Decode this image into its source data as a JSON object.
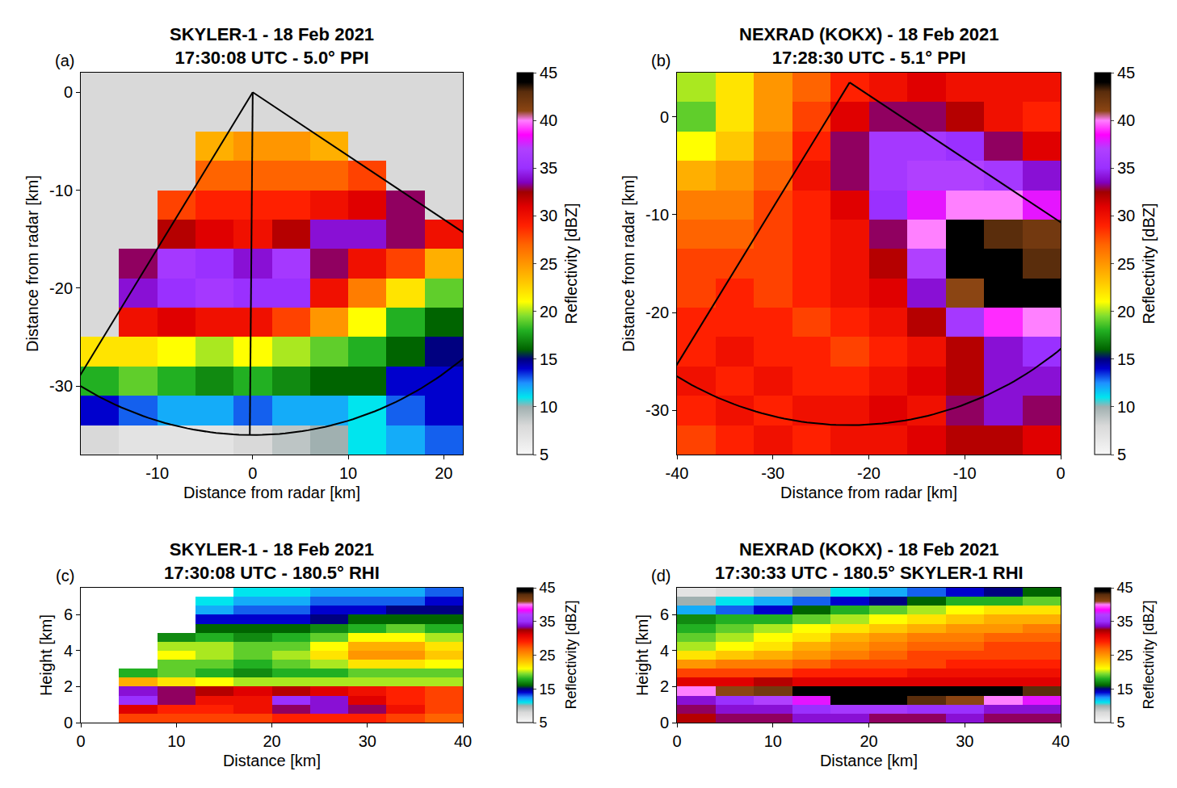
{
  "chart_data": [
    {
      "type": "heatmap",
      "panel": "(a)",
      "title": [
        "SKYLER-1 - 18 Feb 2021",
        "17:30:08 UTC - 5.0° PPI"
      ],
      "x_label": "Distance from radar [km]",
      "y_label": "Distance from radar [km]",
      "colorbar_label": "Reflectivity [dBZ]",
      "xlim": [
        -18,
        22
      ],
      "ylim": [
        -37,
        2
      ],
      "xticks": [
        -10,
        0,
        10,
        20
      ],
      "yticks": [
        -30,
        -20,
        -10,
        0
      ],
      "zlim": [
        5,
        45
      ],
      "zticks": [
        5,
        10,
        15,
        20,
        25,
        30,
        35,
        40,
        45
      ],
      "grid": false,
      "sector": {
        "apex": [
          0,
          0
        ],
        "azimuths": [
          212,
          123
        ],
        "radius": 35,
        "rhi_azimuth": 180.5
      },
      "x": [
        -16,
        -12,
        -8,
        -4,
        0,
        4,
        8,
        12,
        16,
        20
      ],
      "y": [
        0.5,
        -2.5,
        -5.5,
        -8.5,
        -11.5,
        -14.5,
        -17.5,
        -20.5,
        -23.5,
        -26.5,
        -29.5,
        -32.5,
        -35.5
      ],
      "z": [
        [
          null,
          null,
          null,
          null,
          null,
          null,
          null,
          null,
          null,
          null
        ],
        [
          null,
          null,
          null,
          null,
          null,
          null,
          null,
          null,
          null,
          null
        ],
        [
          null,
          null,
          null,
          24,
          25,
          25,
          24,
          null,
          null,
          null
        ],
        [
          null,
          null,
          null,
          27,
          27,
          27,
          27,
          28,
          null,
          null
        ],
        [
          null,
          null,
          28,
          29,
          29,
          29,
          30,
          31,
          33,
          null
        ],
        [
          null,
          null,
          32,
          31,
          30,
          32,
          34,
          34,
          33,
          30
        ],
        [
          null,
          33,
          36,
          35,
          34,
          36,
          33,
          30,
          28,
          24
        ],
        [
          null,
          34,
          35,
          36,
          35,
          35,
          30,
          26,
          22,
          19
        ],
        [
          null,
          30,
          31,
          30,
          30,
          28,
          25,
          21,
          18,
          16
        ],
        [
          22,
          22,
          21,
          20,
          21,
          20,
          19,
          18,
          16,
          15
        ],
        [
          18,
          19,
          18,
          17,
          18,
          17,
          16,
          16,
          14,
          14
        ],
        [
          14,
          13,
          12,
          12,
          13,
          12,
          12,
          11,
          13,
          14
        ],
        [
          8,
          7,
          7,
          7,
          8,
          9,
          10,
          11,
          12,
          13
        ]
      ]
    },
    {
      "type": "heatmap",
      "panel": "(b)",
      "title": [
        "NEXRAD (KOKX) - 18 Feb 2021",
        "17:28:30 UTC - 5.1° PPI"
      ],
      "x_label": "Distance from radar [km]",
      "y_label": "Distance from radar [km]",
      "colorbar_label": "Reflectivity [dBZ]",
      "xlim": [
        -40,
        0
      ],
      "ylim": [
        -34.5,
        4.5
      ],
      "xticks": [
        -40,
        -30,
        -20,
        -10,
        0
      ],
      "yticks": [
        -30,
        -20,
        -10,
        0
      ],
      "zlim": [
        5,
        45
      ],
      "zticks": [
        5,
        10,
        15,
        20,
        25,
        30,
        35,
        40,
        45
      ],
      "grid": false,
      "sector": {
        "apex": [
          -22,
          3.5
        ],
        "azimuths": [
          212,
          123
        ],
        "radius": 35
      },
      "x": [
        -38,
        -34,
        -30,
        -26,
        -22,
        -18,
        -14,
        -10,
        -6,
        -2
      ],
      "y": [
        3,
        0,
        -3,
        -6,
        -9,
        -12,
        -15,
        -18,
        -21,
        -24,
        -27,
        -30,
        -33
      ],
      "z": [
        [
          20,
          22,
          25,
          27,
          29,
          30,
          31,
          30,
          30,
          30
        ],
        [
          19,
          22,
          25,
          28,
          31,
          33,
          33,
          32,
          30,
          29
        ],
        [
          21,
          23,
          26,
          29,
          33,
          36,
          36,
          35,
          33,
          31
        ],
        [
          24,
          25,
          27,
          30,
          33,
          36,
          37,
          37,
          36,
          34
        ],
        [
          26,
          26,
          28,
          29,
          31,
          35,
          38,
          40,
          40,
          38
        ],
        [
          27,
          27,
          28,
          29,
          30,
          33,
          40,
          44,
          43,
          42
        ],
        [
          28,
          28,
          28,
          29,
          30,
          32,
          37,
          44,
          44,
          43
        ],
        [
          28,
          29,
          28,
          29,
          30,
          31,
          34,
          41,
          44,
          45
        ],
        [
          29,
          29,
          29,
          28,
          29,
          30,
          32,
          36,
          39,
          40
        ],
        [
          29,
          30,
          29,
          29,
          28,
          29,
          30,
          32,
          34,
          35
        ],
        [
          30,
          29,
          30,
          29,
          29,
          30,
          31,
          32,
          34,
          34
        ],
        [
          29,
          30,
          29,
          30,
          30,
          31,
          30,
          33,
          34,
          33
        ],
        [
          28,
          29,
          30,
          29,
          30,
          30,
          31,
          32,
          32,
          31
        ]
      ]
    },
    {
      "type": "heatmap",
      "panel": "(c)",
      "title": [
        "SKYLER-1 - 18 Feb 2021",
        "17:30:08 UTC - 180.5° RHI"
      ],
      "x_label": "Distance [km]",
      "y_label": "Height [km]",
      "colorbar_label": "Reflectivity [dBZ]",
      "xlim": [
        0,
        40
      ],
      "ylim": [
        0,
        7.5
      ],
      "xticks": [
        0,
        10,
        20,
        30,
        40
      ],
      "yticks": [
        0,
        2,
        4,
        6
      ],
      "zlim": [
        5,
        45
      ],
      "zticks": [
        5,
        15,
        25,
        35,
        45
      ],
      "grid": false,
      "x": [
        2,
        6,
        10,
        14,
        18,
        22,
        26,
        30,
        34,
        38
      ],
      "y": [
        7.25,
        6.75,
        6.25,
        5.75,
        5.25,
        4.75,
        4.25,
        3.75,
        3.25,
        2.75,
        2.25,
        1.75,
        1.25,
        0.75,
        0.25
      ],
      "z": [
        [
          null,
          null,
          null,
          null,
          11,
          11,
          12,
          12,
          12,
          13
        ],
        [
          null,
          null,
          null,
          11,
          12,
          12,
          13,
          13,
          13,
          14
        ],
        [
          null,
          null,
          null,
          12,
          13,
          13,
          14,
          14,
          15,
          15
        ],
        [
          null,
          null,
          null,
          14,
          14,
          14,
          15,
          16,
          16,
          16
        ],
        [
          null,
          null,
          null,
          16,
          16,
          16,
          17,
          18,
          19,
          18
        ],
        [
          null,
          null,
          17,
          18,
          17,
          18,
          19,
          21,
          21,
          20
        ],
        [
          null,
          null,
          20,
          20,
          19,
          19,
          21,
          24,
          24,
          22
        ],
        [
          null,
          null,
          21,
          20,
          19,
          20,
          22,
          25,
          25,
          23
        ],
        [
          null,
          null,
          19,
          19,
          18,
          19,
          20,
          22,
          22,
          21
        ],
        [
          null,
          18,
          19,
          18,
          17,
          18,
          18,
          19,
          19,
          19
        ],
        [
          null,
          24,
          22,
          21,
          20,
          20,
          20,
          20,
          20,
          20
        ],
        [
          null,
          34,
          33,
          32,
          31,
          32,
          31,
          30,
          29,
          28
        ],
        [
          null,
          35,
          33,
          30,
          30,
          35,
          34,
          31,
          29,
          28
        ],
        [
          null,
          31,
          29,
          29,
          30,
          33,
          34,
          33,
          30,
          28
        ],
        [
          null,
          28,
          28,
          28,
          28,
          29,
          29,
          29,
          28,
          27
        ]
      ]
    },
    {
      "type": "heatmap",
      "panel": "(d)",
      "title": [
        "NEXRAD (KOKX) - 18 Feb 2021",
        "17:30:33 UTC - 180.5° SKYLER-1 RHI"
      ],
      "x_label": "Distance [km]",
      "y_label": "Height [km]",
      "colorbar_label": "Reflectivity [dBZ]",
      "xlim": [
        0,
        40
      ],
      "ylim": [
        0,
        7.5
      ],
      "xticks": [
        0,
        10,
        20,
        30,
        40
      ],
      "yticks": [
        0,
        2,
        4,
        6
      ],
      "zlim": [
        5,
        45
      ],
      "zticks": [
        5,
        15,
        25,
        35,
        45
      ],
      "grid": false,
      "x": [
        2,
        6,
        10,
        14,
        18,
        22,
        26,
        30,
        34,
        38
      ],
      "y": [
        7.25,
        6.75,
        6.25,
        5.75,
        5.25,
        4.75,
        4.25,
        3.75,
        3.25,
        2.75,
        2.25,
        1.75,
        1.25,
        0.75,
        0.25
      ],
      "z": [
        [
          7,
          8,
          9,
          10,
          11,
          12,
          13,
          14,
          15,
          16
        ],
        [
          10,
          11,
          12,
          13,
          14,
          15,
          16,
          18,
          18,
          19
        ],
        [
          12,
          13,
          14,
          16,
          18,
          19,
          20,
          21,
          22,
          22
        ],
        [
          17,
          18,
          18,
          19,
          20,
          21,
          22,
          23,
          24,
          24
        ],
        [
          18,
          19,
          20,
          21,
          22,
          23,
          24,
          25,
          25,
          26
        ],
        [
          19,
          20,
          21,
          22,
          24,
          25,
          26,
          26,
          27,
          27
        ],
        [
          20,
          21,
          22,
          24,
          25,
          26,
          27,
          27,
          28,
          28
        ],
        [
          22,
          23,
          24,
          25,
          26,
          27,
          28,
          28,
          28,
          28
        ],
        [
          25,
          26,
          26,
          27,
          28,
          28,
          28,
          29,
          29,
          29
        ],
        [
          28,
          28,
          28,
          29,
          29,
          29,
          30,
          30,
          30,
          30
        ],
        [
          31,
          31,
          32,
          31,
          31,
          31,
          31,
          31,
          31,
          31
        ],
        [
          40,
          41,
          42,
          44,
          45,
          45,
          45,
          44,
          44,
          43
        ],
        [
          34,
          35,
          37,
          38,
          44,
          45,
          43,
          41,
          40,
          38
        ],
        [
          33,
          34,
          34,
          35,
          36,
          36,
          35,
          35,
          34,
          34
        ],
        [
          32,
          33,
          33,
          34,
          34,
          33,
          33,
          34,
          33,
          33
        ]
      ]
    }
  ]
}
